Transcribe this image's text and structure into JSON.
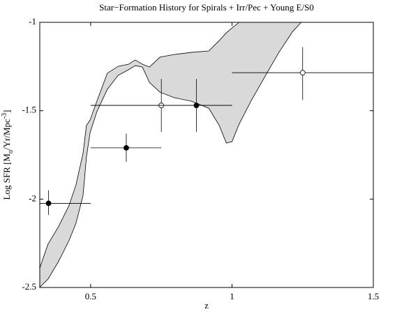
{
  "chart_data": {
    "type": "errorbar-band",
    "title": "Star−Formation History for Spirals + Irr/Pec + Young E/S0",
    "xlabel": "z",
    "ylabel": [
      "Log SFR [M",
      "o",
      "/Yr/Mpc",
      "-3",
      "]"
    ],
    "xlim": [
      0.32,
      1.5
    ],
    "ylim": [
      -2.5,
      -1
    ],
    "xticks": [
      0.5,
      1,
      1.5
    ],
    "yticks": [
      -2.5,
      -2,
      -1.5,
      -1
    ],
    "band": {
      "color": "#d9d9d9",
      "z": [
        0.319,
        0.349,
        0.386,
        0.423,
        0.448,
        0.473,
        0.485,
        0.498,
        0.522,
        0.559,
        0.597,
        0.634,
        0.658,
        0.683,
        0.708,
        0.745,
        0.795,
        0.856,
        0.918,
        0.955,
        0.98,
        1.0,
        1.025,
        1.067,
        1.116,
        1.166,
        1.215,
        1.245
      ],
      "upper": [
        -2.394,
        -2.255,
        -2.157,
        -2.038,
        -1.92,
        -1.742,
        -1.584,
        -1.553,
        -1.446,
        -1.288,
        -1.249,
        -1.237,
        -1.213,
        -1.237,
        -1.253,
        -1.197,
        -1.182,
        -1.17,
        -1.162,
        -1.103,
        -1.059,
        -1.032,
        -1.0,
        null,
        null,
        null,
        null,
        null
      ],
      "lower": [
        -2.5,
        -2.453,
        -2.354,
        -2.236,
        -2.137,
        -1.979,
        -1.762,
        -1.624,
        -1.505,
        -1.379,
        -1.3,
        -1.268,
        -1.245,
        -1.253,
        -1.34,
        -1.395,
        -1.426,
        -1.446,
        -1.486,
        -1.584,
        -1.683,
        -1.675,
        -1.576,
        -1.446,
        -1.308,
        -1.17,
        -1.051,
        -1.0
      ]
    },
    "points": [
      {
        "marker": "filled",
        "x": 0.351,
        "y": -2.024,
        "xlo": 0.32,
        "xhi": 0.5,
        "ylo": -2.09,
        "yhi": -1.95
      },
      {
        "marker": "filled",
        "x": 0.626,
        "y": -1.71,
        "xlo": 0.5,
        "xhi": 0.75,
        "ylo": -1.79,
        "yhi": -1.63
      },
      {
        "marker": "open",
        "x": 0.75,
        "y": -1.47,
        "xlo": 0.5,
        "xhi": 1.0,
        "ylo": -1.62,
        "yhi": -1.32
      },
      {
        "marker": "filled",
        "x": 0.874,
        "y": -1.47,
        "xlo": 0.5,
        "xhi": 1.0,
        "ylo": -1.62,
        "yhi": -1.32
      },
      {
        "marker": "open",
        "x": 1.25,
        "y": -1.285,
        "xlo": 1.0,
        "xhi": 1.5,
        "ylo": -1.44,
        "yhi": -1.14
      }
    ]
  }
}
